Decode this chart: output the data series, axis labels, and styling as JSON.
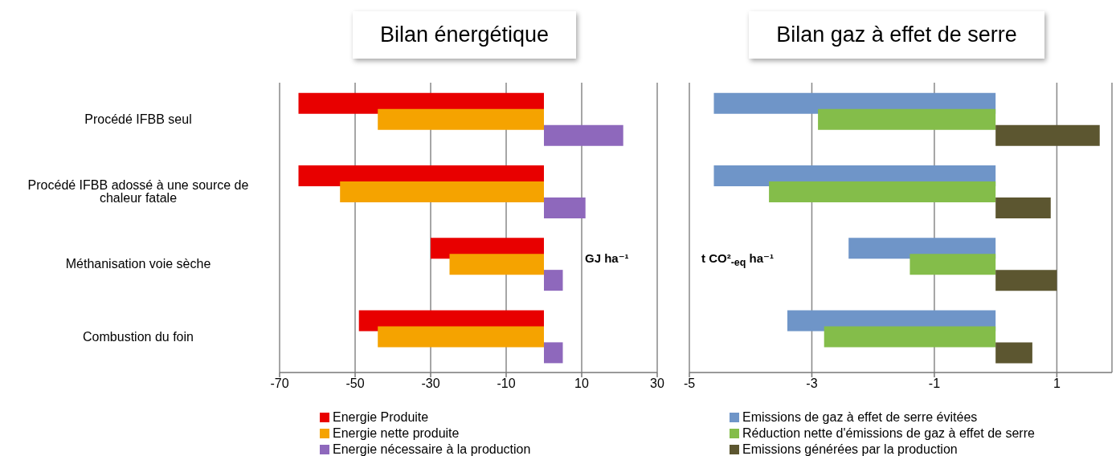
{
  "chart_data": [
    {
      "type": "bar",
      "orientation": "horizontal",
      "title": "Bilan énergétique",
      "xlabel": "GJ ha⁻¹",
      "categories": [
        "Procédé IFBB seul",
        "Procédé IFBB adossé à une source de chaleur fatale",
        "Méthanisation voie sèche",
        "Combustion du foin"
      ],
      "series": [
        {
          "name": "Energie Produite",
          "color": "#e80000",
          "values": [
            -65,
            -65,
            -30,
            -49
          ]
        },
        {
          "name": "Energie nette produite",
          "color": "#f5a300",
          "values": [
            -44,
            -54,
            -25,
            -44
          ]
        },
        {
          "name": "Energie nécessaire à la production",
          "color": "#8e68bc",
          "values": [
            21,
            11,
            5,
            5
          ]
        }
      ],
      "xlim": [
        -70,
        30
      ],
      "xticks": [
        -70,
        -50,
        -30,
        -10,
        10,
        30
      ],
      "grid": "x",
      "legend": "bottom"
    },
    {
      "type": "bar",
      "orientation": "horizontal",
      "title": "Bilan gaz à effet de serre",
      "xlabel": "t CO²$_{-eq}$ ha⁻¹",
      "categories": [
        null,
        null,
        null,
        null
      ],
      "series": [
        {
          "name": "Emissions de gaz à effet de serre évitées",
          "color": "#6f95c8",
          "values": [
            -4.6,
            -4.6,
            -2.4,
            -3.4
          ]
        },
        {
          "name": "Réduction nette d'émissions de gaz à effet de serre",
          "color": "#84bd4a",
          "values": [
            -2.9,
            -3.7,
            -1.4,
            -2.8
          ]
        },
        {
          "name": "Emissions générées par la production",
          "color": "#5c5630",
          "values": [
            1.7,
            0.9,
            1.0,
            0.6
          ]
        }
      ],
      "xlim": [
        -5,
        1.9
      ],
      "xticks": [
        -5,
        -3,
        -1,
        1
      ],
      "grid": "x",
      "legend": "bottom",
      "tick_labels": "x"
    }
  ]
}
